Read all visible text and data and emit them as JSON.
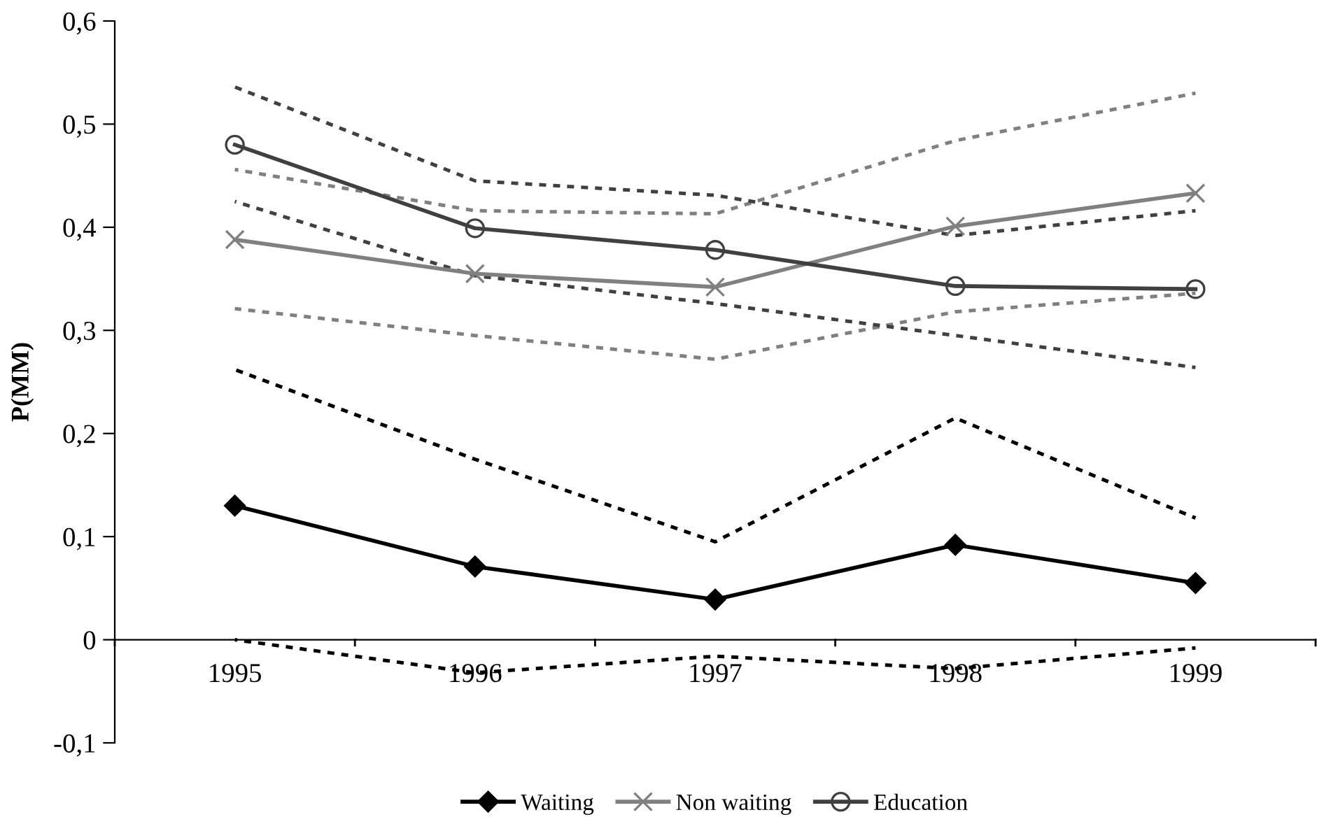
{
  "chart_data": {
    "type": "line",
    "ylabel": "P(MM)",
    "categories": [
      "1995",
      "1996",
      "1997",
      "1998",
      "1999"
    ],
    "series": [
      {
        "name": "Waiting",
        "color": "#000000",
        "marker": "diamond",
        "values": [
          0.13,
          0.071,
          0.039,
          0.092,
          0.055
        ]
      },
      {
        "name": "Non waiting",
        "color": "#808080",
        "marker": "cross",
        "values": [
          0.388,
          0.355,
          0.342,
          0.401,
          0.433
        ]
      },
      {
        "name": "Education",
        "color": "#404040",
        "marker": "circle",
        "values": [
          0.48,
          0.399,
          0.378,
          0.343,
          0.34
        ]
      },
      {
        "color": "#000000",
        "marker": "none",
        "line_style": "dashed",
        "values": [
          0.0,
          -0.032,
          -0.016,
          -0.028,
          -0.008
        ]
      },
      {
        "color": "#000000",
        "marker": "none",
        "line_style": "dashed",
        "values": [
          0.262,
          0.175,
          0.095,
          0.215,
          0.118
        ]
      },
      {
        "color": "#808080",
        "marker": "none",
        "line_style": "dashed",
        "values": [
          0.321,
          0.295,
          0.272,
          0.318,
          0.336
        ]
      },
      {
        "color": "#808080",
        "marker": "none",
        "line_style": "dashed",
        "values": [
          0.456,
          0.416,
          0.413,
          0.484,
          0.53
        ]
      },
      {
        "color": "#404040",
        "marker": "none",
        "line_style": "dashed",
        "values": [
          0.425,
          0.353,
          0.326,
          0.295,
          0.264
        ]
      },
      {
        "color": "#404040",
        "marker": "none",
        "line_style": "dashed",
        "values": [
          0.536,
          0.445,
          0.431,
          0.392,
          0.416
        ]
      }
    ],
    "ylim": [
      -0.1,
      0.6
    ],
    "yticks": [
      {
        "value": -0.1,
        "label": "-0,1"
      },
      0,
      {
        "value": 0.1,
        "label": "0,1"
      },
      {
        "value": 0.2,
        "label": "0,2"
      },
      {
        "value": 0.3,
        "label": "0,3"
      },
      {
        "value": 0.4,
        "label": "0,4"
      },
      {
        "value": 0.5,
        "label": "0,5"
      },
      {
        "value": 0.6,
        "label": "0,6"
      }
    ],
    "grid": false,
    "legend": "bottom",
    "line_style": "solid"
  }
}
